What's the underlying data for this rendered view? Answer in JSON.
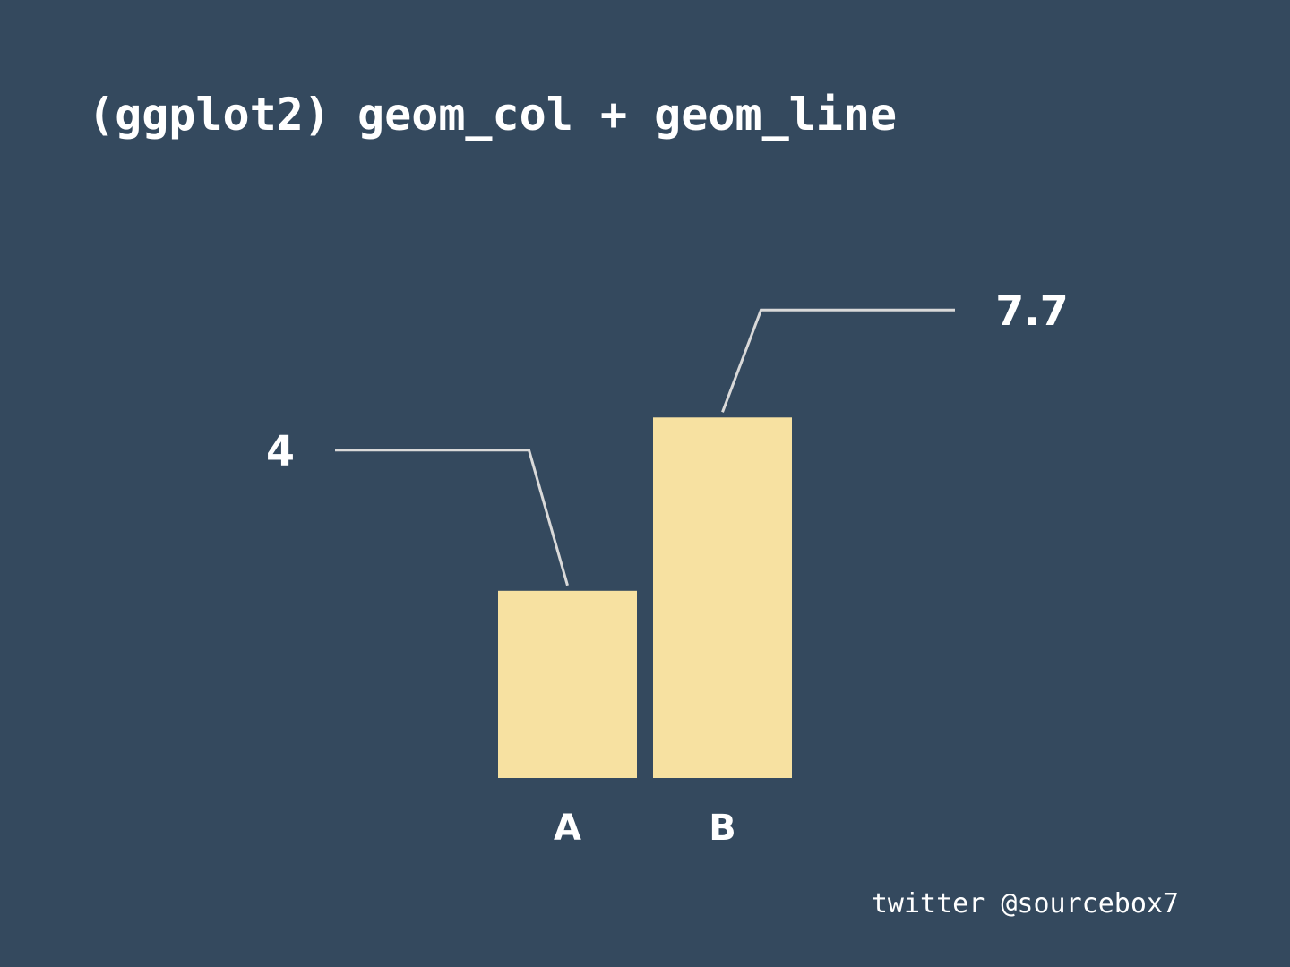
{
  "title": "(ggplot2) geom_col + geom_line",
  "caption": "twitter @sourcebox7",
  "colors": {
    "background": "#34495e",
    "bar": "#f7e1a1",
    "leader_line": "#d9d9d9",
    "text": "#ffffff"
  },
  "chart_data": {
    "type": "bar",
    "categories": [
      "A",
      "B"
    ],
    "values": [
      4,
      7.7
    ],
    "data_labels": [
      "4",
      "7.7"
    ],
    "ylim": [
      0,
      10
    ],
    "grid": false,
    "legend": "none"
  }
}
